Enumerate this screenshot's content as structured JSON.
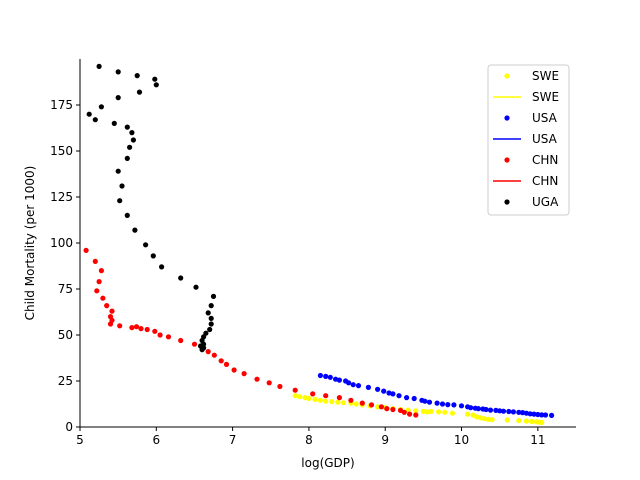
{
  "chart_data": {
    "type": "scatter",
    "title": "",
    "xlabel": "log(GDP)",
    "ylabel": "Child Mortality (per 1000)",
    "xlim": [
      5,
      11.5
    ],
    "ylim": [
      0,
      200
    ],
    "xticks": [
      5,
      6,
      7,
      8,
      9,
      10,
      11
    ],
    "yticks": [
      0,
      25,
      50,
      75,
      100,
      125,
      150,
      175
    ],
    "grid": false,
    "legend_position": "top-right",
    "legend": [
      {
        "label": "SWE",
        "kind": "marker",
        "color": "#ffff00"
      },
      {
        "label": "SWE",
        "kind": "line",
        "color": "#ffff00"
      },
      {
        "label": "USA",
        "kind": "marker",
        "color": "#0000ff"
      },
      {
        "label": "USA",
        "kind": "line",
        "color": "#0000ff"
      },
      {
        "label": "CHN",
        "kind": "marker",
        "color": "#ff0000"
      },
      {
        "label": "CHN",
        "kind": "line",
        "color": "#ff0000"
      },
      {
        "label": "UGA",
        "kind": "marker",
        "color": "#000000"
      }
    ],
    "series": [
      {
        "name": "SWE",
        "color": "#ffff00",
        "points": [
          [
            7.82,
            17
          ],
          [
            7.88,
            16.5
          ],
          [
            7.95,
            16
          ],
          [
            8.0,
            15.5
          ],
          [
            8.08,
            15
          ],
          [
            8.15,
            14.5
          ],
          [
            8.22,
            14
          ],
          [
            8.3,
            13.8
          ],
          [
            8.38,
            13.5
          ],
          [
            8.45,
            13.2
          ],
          [
            8.55,
            13
          ],
          [
            8.62,
            12.5
          ],
          [
            8.7,
            12
          ],
          [
            8.8,
            11.5
          ],
          [
            8.9,
            11
          ],
          [
            9.0,
            10.5
          ],
          [
            9.1,
            10
          ],
          [
            9.2,
            9.5
          ],
          [
            9.3,
            9.2
          ],
          [
            9.4,
            8.8
          ],
          [
            9.5,
            8.5
          ],
          [
            9.55,
            8.2
          ],
          [
            9.6,
            8.5
          ],
          [
            9.7,
            8.2
          ],
          [
            9.78,
            8
          ],
          [
            9.88,
            7.5
          ],
          [
            10.08,
            7
          ],
          [
            10.15,
            6.5
          ],
          [
            10.2,
            5.5
          ],
          [
            10.25,
            5
          ],
          [
            10.3,
            4.5
          ],
          [
            10.35,
            4.2
          ],
          [
            10.4,
            4
          ],
          [
            10.6,
            3.8
          ],
          [
            10.75,
            3.5
          ],
          [
            10.85,
            3.2
          ],
          [
            10.92,
            3
          ],
          [
            10.98,
            2.8
          ],
          [
            11.02,
            2.6
          ],
          [
            11.05,
            2.5
          ]
        ]
      },
      {
        "name": "USA",
        "color": "#0000ff",
        "points": [
          [
            8.15,
            28
          ],
          [
            8.22,
            27.5
          ],
          [
            8.28,
            27
          ],
          [
            8.35,
            26
          ],
          [
            8.4,
            25.5
          ],
          [
            8.48,
            25
          ],
          [
            8.52,
            24
          ],
          [
            8.58,
            23
          ],
          [
            8.65,
            22.5
          ],
          [
            8.78,
            21.5
          ],
          [
            8.9,
            20.5
          ],
          [
            8.98,
            19.5
          ],
          [
            9.05,
            18.5
          ],
          [
            9.1,
            18
          ],
          [
            9.18,
            17
          ],
          [
            9.28,
            16
          ],
          [
            9.38,
            15.5
          ],
          [
            9.48,
            14.5
          ],
          [
            9.52,
            14
          ],
          [
            9.58,
            13.5
          ],
          [
            9.68,
            13
          ],
          [
            9.75,
            12.5
          ],
          [
            9.82,
            12.2
          ],
          [
            9.9,
            12
          ],
          [
            10.0,
            11.5
          ],
          [
            10.08,
            11
          ],
          [
            10.12,
            10.5
          ],
          [
            10.18,
            10.2
          ],
          [
            10.22,
            10
          ],
          [
            10.28,
            9.8
          ],
          [
            10.32,
            9.5
          ],
          [
            10.38,
            9.2
          ],
          [
            10.45,
            9
          ],
          [
            10.5,
            8.8
          ],
          [
            10.55,
            8.6
          ],
          [
            10.62,
            8.4
          ],
          [
            10.68,
            8.2
          ],
          [
            10.75,
            8
          ],
          [
            10.8,
            7.8
          ],
          [
            10.85,
            7.5
          ],
          [
            10.9,
            7.2
          ],
          [
            10.95,
            7
          ],
          [
            11.0,
            6.8
          ],
          [
            11.05,
            6.6
          ],
          [
            11.1,
            6.5
          ],
          [
            11.18,
            6.3
          ]
        ]
      },
      {
        "name": "CHN",
        "color": "#ff0000",
        "points": [
          [
            5.08,
            96
          ],
          [
            5.2,
            90
          ],
          [
            5.28,
            85
          ],
          [
            5.25,
            79
          ],
          [
            5.22,
            74
          ],
          [
            5.3,
            70
          ],
          [
            5.35,
            66
          ],
          [
            5.42,
            63
          ],
          [
            5.4,
            60
          ],
          [
            5.42,
            58
          ],
          [
            5.4,
            56
          ],
          [
            5.52,
            55
          ],
          [
            5.68,
            54
          ],
          [
            5.74,
            54.5
          ],
          [
            5.8,
            53.5
          ],
          [
            5.88,
            53
          ],
          [
            5.98,
            52
          ],
          [
            6.05,
            50
          ],
          [
            6.16,
            49
          ],
          [
            6.32,
            47
          ],
          [
            6.5,
            45
          ],
          [
            6.6,
            43.5
          ],
          [
            6.68,
            41
          ],
          [
            6.76,
            39
          ],
          [
            6.85,
            36
          ],
          [
            6.92,
            34
          ],
          [
            7.02,
            31
          ],
          [
            7.15,
            29
          ],
          [
            7.32,
            26
          ],
          [
            7.48,
            24
          ],
          [
            7.62,
            22
          ],
          [
            7.82,
            20
          ],
          [
            8.05,
            18
          ],
          [
            8.22,
            17
          ],
          [
            8.4,
            16
          ],
          [
            8.55,
            14.5
          ],
          [
            8.7,
            13
          ],
          [
            8.82,
            12
          ],
          [
            8.95,
            11
          ],
          [
            9.02,
            10
          ],
          [
            9.1,
            9.5
          ],
          [
            9.2,
            9
          ],
          [
            9.25,
            8
          ],
          [
            9.32,
            7
          ],
          [
            9.4,
            6.5
          ]
        ]
      },
      {
        "name": "UGA",
        "color": "#000000",
        "points": [
          [
            5.25,
            196
          ],
          [
            5.5,
            193
          ],
          [
            5.75,
            191
          ],
          [
            5.98,
            189
          ],
          [
            6.0,
            186
          ],
          [
            5.78,
            182
          ],
          [
            5.5,
            179
          ],
          [
            5.28,
            174
          ],
          [
            5.12,
            170
          ],
          [
            5.2,
            167
          ],
          [
            5.45,
            165
          ],
          [
            5.62,
            163
          ],
          [
            5.68,
            160
          ],
          [
            5.7,
            156
          ],
          [
            5.65,
            152
          ],
          [
            5.62,
            146
          ],
          [
            5.5,
            139
          ],
          [
            5.55,
            131
          ],
          [
            5.52,
            123
          ],
          [
            5.62,
            115
          ],
          [
            5.72,
            107
          ],
          [
            5.86,
            99
          ],
          [
            5.96,
            93
          ],
          [
            6.07,
            87
          ],
          [
            6.32,
            81
          ],
          [
            6.52,
            76
          ],
          [
            6.75,
            71
          ],
          [
            6.72,
            66
          ],
          [
            6.68,
            62
          ],
          [
            6.72,
            59
          ],
          [
            6.72,
            56
          ],
          [
            6.7,
            53
          ],
          [
            6.65,
            51
          ],
          [
            6.62,
            49
          ],
          [
            6.6,
            47
          ],
          [
            6.62,
            45
          ],
          [
            6.58,
            44
          ],
          [
            6.62,
            43
          ],
          [
            6.6,
            42
          ]
        ]
      }
    ]
  }
}
